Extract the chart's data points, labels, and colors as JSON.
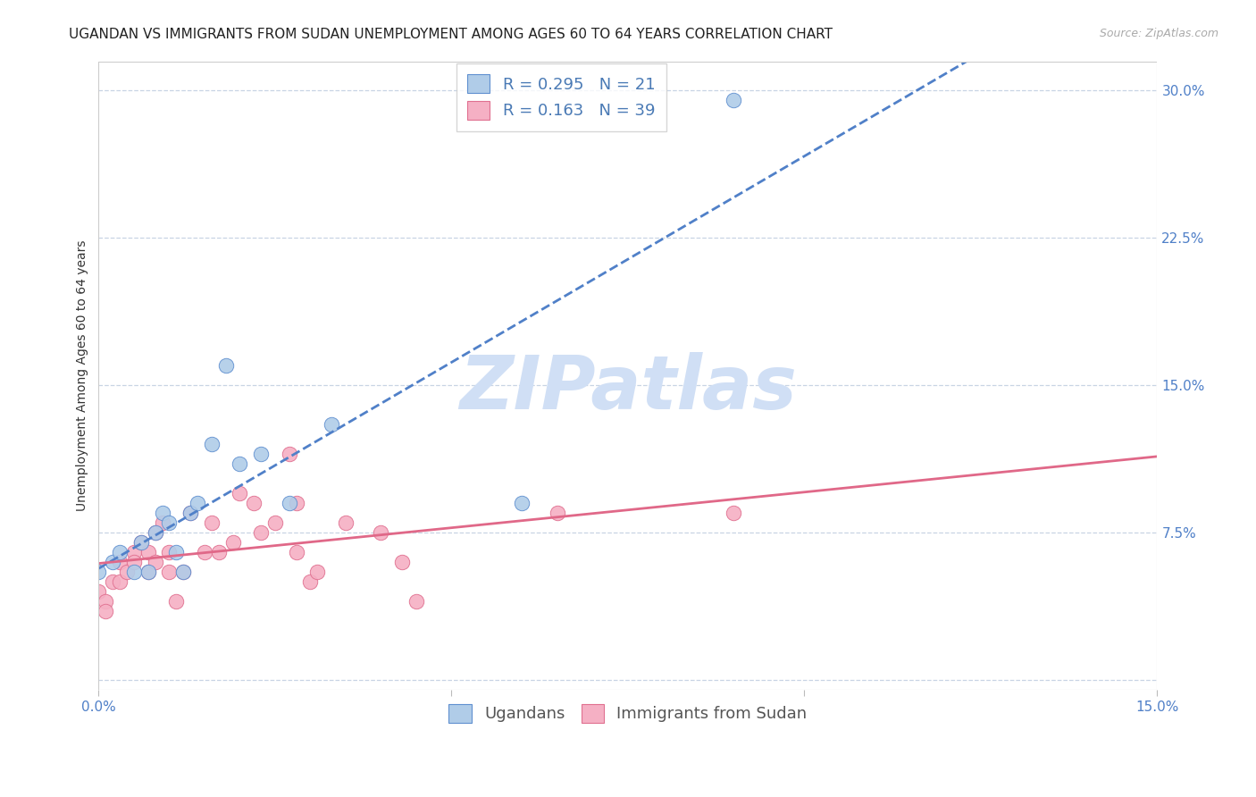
{
  "title": "UGANDAN VS IMMIGRANTS FROM SUDAN UNEMPLOYMENT AMONG AGES 60 TO 64 YEARS CORRELATION CHART",
  "source": "Source: ZipAtlas.com",
  "ylabel": "Unemployment Among Ages 60 to 64 years",
  "xmin": 0.0,
  "xmax": 0.15,
  "ymin": -0.005,
  "ymax": 0.315,
  "xticks": [
    0.0,
    0.05,
    0.1,
    0.15
  ],
  "xtick_labels": [
    "0.0%",
    "",
    "",
    "15.0%"
  ],
  "yticks_right": [
    0.075,
    0.15,
    0.225,
    0.3
  ],
  "ytick_right_labels": [
    "7.5%",
    "15.0%",
    "22.5%",
    "30.0%"
  ],
  "yticks_grid": [
    0.0,
    0.075,
    0.15,
    0.225,
    0.3
  ],
  "ugandan_color": "#b0cce8",
  "sudan_color": "#f5b0c4",
  "ugandan_edge_color": "#6090d0",
  "sudan_edge_color": "#e07090",
  "ugandan_trend_color": "#5080c8",
  "sudan_trend_color": "#e06888",
  "watermark": "ZIPatlas",
  "watermark_color": "#d0dff5",
  "background_color": "#ffffff",
  "grid_color": "#c8d4e4",
  "title_fontsize": 11,
  "tick_fontsize": 11,
  "legend_fontsize": 13,
  "r_ugandan": 0.295,
  "n_ugandan": 21,
  "r_sudan": 0.163,
  "n_sudan": 39,
  "ugandan_x": [
    0.0,
    0.002,
    0.003,
    0.005,
    0.006,
    0.007,
    0.008,
    0.009,
    0.01,
    0.011,
    0.012,
    0.013,
    0.014,
    0.016,
    0.018,
    0.02,
    0.023,
    0.027,
    0.033,
    0.06,
    0.09
  ],
  "ugandan_y": [
    0.055,
    0.06,
    0.065,
    0.055,
    0.07,
    0.055,
    0.075,
    0.085,
    0.08,
    0.065,
    0.055,
    0.085,
    0.09,
    0.12,
    0.16,
    0.11,
    0.115,
    0.09,
    0.13,
    0.09,
    0.295
  ],
  "sudan_x": [
    0.0,
    0.001,
    0.001,
    0.002,
    0.003,
    0.003,
    0.004,
    0.005,
    0.005,
    0.006,
    0.007,
    0.007,
    0.008,
    0.008,
    0.009,
    0.01,
    0.01,
    0.011,
    0.012,
    0.013,
    0.015,
    0.016,
    0.017,
    0.019,
    0.02,
    0.022,
    0.023,
    0.025,
    0.027,
    0.028,
    0.028,
    0.03,
    0.031,
    0.035,
    0.04,
    0.043,
    0.045,
    0.065,
    0.09
  ],
  "sudan_y": [
    0.045,
    0.04,
    0.035,
    0.05,
    0.06,
    0.05,
    0.055,
    0.065,
    0.06,
    0.07,
    0.065,
    0.055,
    0.075,
    0.06,
    0.08,
    0.055,
    0.065,
    0.04,
    0.055,
    0.085,
    0.065,
    0.08,
    0.065,
    0.07,
    0.095,
    0.09,
    0.075,
    0.08,
    0.115,
    0.09,
    0.065,
    0.05,
    0.055,
    0.08,
    0.075,
    0.06,
    0.04,
    0.085,
    0.085
  ],
  "legend_bottom_labels": [
    "Ugandans",
    "Immigrants from Sudan"
  ]
}
